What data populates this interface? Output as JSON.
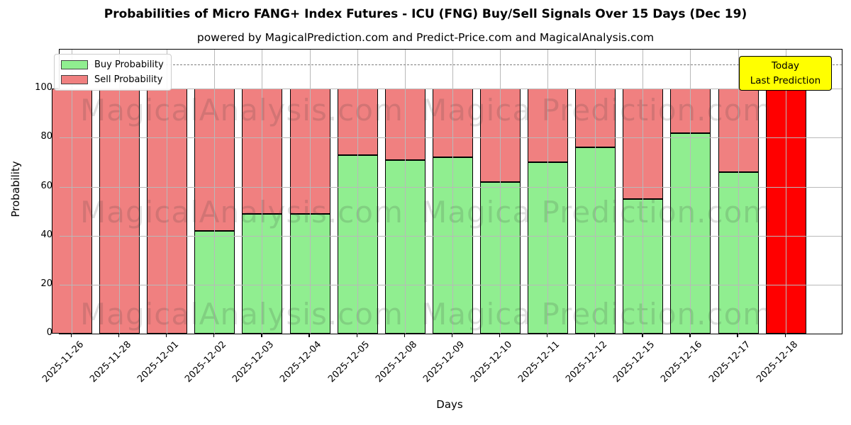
{
  "chart": {
    "title": "Probabilities of Micro FANG+ Index Futures - ICU (FNG) Buy/Sell Signals Over 15 Days (Dec 19)",
    "subtitle": "powered by MagicalPrediction.com and Predict-Price.com and MagicalAnalysis.com",
    "xlabel": "Days",
    "ylabel": "Probability",
    "legend": {
      "buy": "Buy Probability",
      "sell": "Sell Probability"
    },
    "annotation": {
      "line1": "Today",
      "line2": "Last Prediction"
    },
    "watermark": {
      "left": "MagicalAnalysis.com",
      "right": "Magica Prediction.com"
    }
  },
  "colors": {
    "buy": "#90ee90",
    "sell": "#f08080",
    "today_sell": "#ff0000",
    "annotation_bg": "#ffff00",
    "grid": "#b9b9b9",
    "threshold": "#7f7f7f"
  },
  "chart_data": {
    "type": "bar",
    "stacked": true,
    "title": "Probabilities of Micro FANG+ Index Futures - ICU (FNG) Buy/Sell Signals Over 15 Days (Dec 19)",
    "subtitle": "powered by MagicalPrediction.com and Predict-Price.com and MagicalAnalysis.com",
    "xlabel": "Days",
    "ylabel": "Probability",
    "categories": [
      "2025-11-26",
      "2025-11-28",
      "2025-12-01",
      "2025-12-02",
      "2025-12-03",
      "2025-12-04",
      "2025-12-05",
      "2025-12-08",
      "2025-12-09",
      "2025-12-10",
      "2025-12-11",
      "2025-12-12",
      "2025-12-15",
      "2025-12-16",
      "2025-12-17",
      "2025-12-18"
    ],
    "series": [
      {
        "name": "Buy Probability",
        "color": "#90ee90",
        "values": [
          0,
          0,
          0,
          42,
          49,
          49,
          73,
          71,
          72,
          62,
          70,
          76,
          55,
          82,
          66,
          0
        ]
      },
      {
        "name": "Sell Probability",
        "color": "#f08080",
        "values": [
          100,
          100,
          100,
          58,
          51,
          51,
          27,
          29,
          28,
          38,
          30,
          24,
          45,
          18,
          34,
          100
        ]
      }
    ],
    "today_index": 15,
    "today_sell_color": "#ff0000",
    "threshold_line": {
      "y": 110,
      "style": "dashed",
      "color": "#7f7f7f"
    },
    "ylim": [
      0,
      116
    ],
    "yticks": [
      0,
      20,
      40,
      60,
      80,
      100
    ],
    "grid": true,
    "legend_position": "upper left",
    "annotation_text": [
      "Today",
      "Last Prediction"
    ],
    "watermarks": [
      "MagicalAnalysis.com",
      "Magica Prediction.com"
    ]
  }
}
